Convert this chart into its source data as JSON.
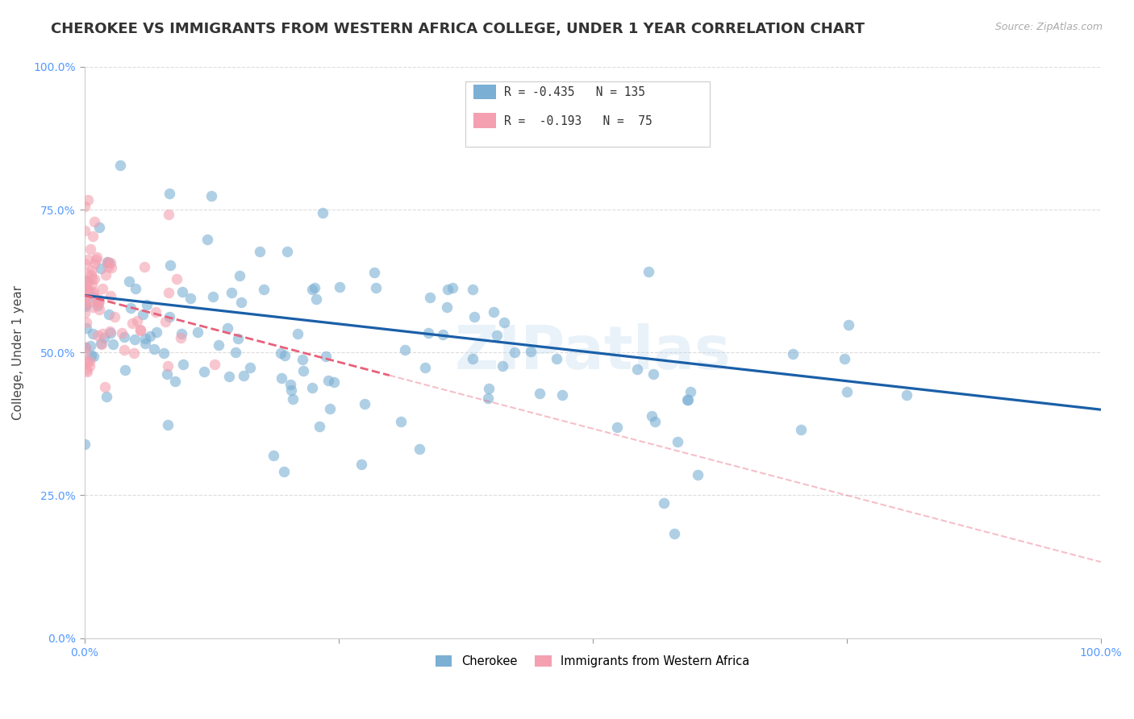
{
  "title": "CHEROKEE VS IMMIGRANTS FROM WESTERN AFRICA COLLEGE, UNDER 1 YEAR CORRELATION CHART",
  "source": "Source: ZipAtlas.com",
  "ylabel": "College, Under 1 year",
  "xlabel": "",
  "xlim": [
    0,
    1
  ],
  "ylim": [
    0,
    1
  ],
  "ytick_positions": [
    0.0,
    0.25,
    0.5,
    0.75,
    1.0
  ],
  "ytick_labels": [
    "0.0%",
    "25.0%",
    "50.0%",
    "75.0%",
    "100.0%"
  ],
  "xtick_positions": [
    0.0,
    0.25,
    0.5,
    0.75,
    1.0
  ],
  "xtick_labels": [
    "0.0%",
    "",
    "",
    "",
    "100.0%"
  ],
  "series1_label": "Cherokee",
  "series2_label": "Immigrants from Western Africa",
  "series1_color": "#7bafd4",
  "series2_color": "#f4a0b0",
  "series1_line_color": "#1a5fa8",
  "series2_line_color": "#e8607a",
  "R1": -0.435,
  "N1": 135,
  "R2": -0.193,
  "N2": 75,
  "watermark": "ZIPatlas",
  "title_fontsize": 13,
  "axis_label_fontsize": 11,
  "tick_fontsize": 10,
  "tick_color": "#5599ff",
  "source_fontsize": 9,
  "background_color": "#ffffff",
  "grid_color": "#dddddd",
  "seed1": 42,
  "seed2": 7,
  "line1_x0": 0.0,
  "line1_x1": 1.0,
  "line1_y0": 0.6,
  "line1_y1": 0.4,
  "line2_x0": 0.0,
  "line2_x1": 0.3,
  "line2_y0": 0.6,
  "line2_y1": 0.46
}
